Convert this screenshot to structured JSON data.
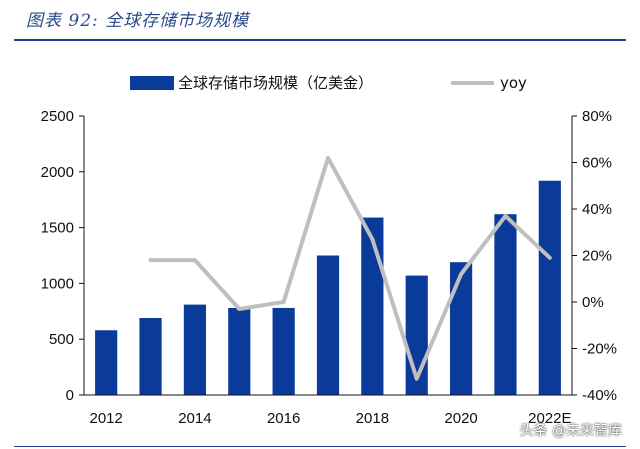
{
  "figure": {
    "caption": "图表 92:  全球存储市场规模"
  },
  "watermark": "头条 @未来智库",
  "colors": {
    "bar": "#0a3a9a",
    "line": "#bfbfbf",
    "caption": "#2a4a8c",
    "rule": "#1f3f8f"
  },
  "chart_data": {
    "type": "bar",
    "title": "",
    "categories": [
      "2012",
      "2013",
      "2014",
      "2015",
      "2016",
      "2017",
      "2018",
      "2019",
      "2020",
      "2021",
      "2022E"
    ],
    "x_tick_labels": [
      "2012",
      "",
      "2014",
      "",
      "2016",
      "",
      "2018",
      "",
      "2020",
      "",
      "2022E"
    ],
    "series": [
      {
        "name": "全球存储市场规模（亿美金）",
        "type": "bar",
        "axis": "left",
        "values": [
          580,
          690,
          810,
          780,
          780,
          1250,
          1590,
          1070,
          1190,
          1620,
          1920
        ]
      },
      {
        "name": "yoy",
        "type": "line",
        "axis": "right",
        "values": [
          null,
          18,
          18,
          -3,
          0,
          62,
          27,
          -33,
          12,
          37,
          19
        ]
      }
    ],
    "y_left": {
      "min": 0,
      "max": 2500,
      "ticks": [
        0,
        500,
        1000,
        1500,
        2000,
        2500
      ],
      "tick_labels": [
        "0",
        "500",
        "1000",
        "1500",
        "2000",
        "2500"
      ]
    },
    "y_right": {
      "min": -40,
      "max": 80,
      "ticks": [
        -40,
        -20,
        0,
        20,
        40,
        60,
        80
      ],
      "tick_labels": [
        "-40%",
        "-20%",
        "0%",
        "20%",
        "40%",
        "60%",
        "80%"
      ]
    },
    "legend": "top",
    "grid": false
  }
}
